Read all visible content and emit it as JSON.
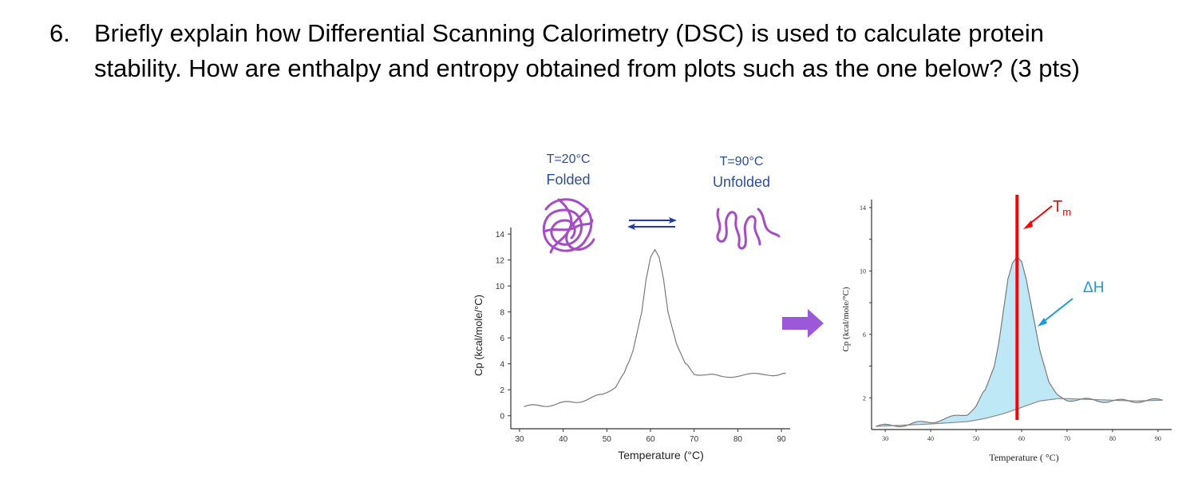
{
  "question": {
    "number": "6.",
    "text": "Briefly explain how Differential Scanning Calorimetry (DSC) is used to calculate protein stability. How are enthalpy and entropy obtained from plots such as the one below? (3 pts)"
  },
  "figure": {
    "folded_label_temp": "T=20°C",
    "folded_label_state": "Folded",
    "unfolded_label_temp": "T=90°C",
    "unfolded_label_state": "Unfolded",
    "tm_label": "T",
    "tm_label_sub": "m",
    "dh_label": "ΔH",
    "colors": {
      "protein": "#a54cc6",
      "equilibrium_arrows": "#1f3c9e",
      "label_blue": "#2a4d9c",
      "transition_arrow": "#9b59d8",
      "tm_line": "#ff0000",
      "area_fill": "#bfe8f7",
      "dh_arrow": "#1a9be0",
      "curve": "#7a7a7a"
    }
  },
  "chart_data": [
    {
      "type": "line",
      "xlabel": "Temperature (°C)",
      "ylabel": "Cp (kcal/mole/°C)",
      "xlim": [
        28,
        92
      ],
      "ylim": [
        -1,
        14.5
      ],
      "xticks": [
        30,
        40,
        50,
        60,
        70,
        80,
        90
      ],
      "yticks": [
        0,
        2,
        4,
        6,
        8,
        10,
        12,
        14
      ],
      "x": [
        31,
        34,
        37,
        40,
        43,
        46,
        49,
        52,
        54,
        56,
        58,
        59,
        60,
        61,
        62,
        63,
        64,
        66,
        68,
        70,
        73,
        76,
        80,
        84,
        88,
        91
      ],
      "y": [
        0.7,
        0.75,
        0.85,
        0.95,
        1.1,
        1.3,
        1.6,
        2.3,
        3.2,
        5.0,
        8.0,
        10.5,
        12.2,
        12.8,
        12.2,
        10.5,
        8.0,
        5.5,
        4.0,
        3.3,
        3.1,
        3.05,
        3.1,
        3.15,
        3.2,
        3.25
      ]
    },
    {
      "type": "area",
      "xlabel": "Temperature ( °C)",
      "ylabel": "Cp (kcal/mole/°C)",
      "xlim": [
        27,
        93
      ],
      "ylim": [
        0,
        14.5
      ],
      "xticks": [
        30,
        40,
        50,
        60,
        70,
        80,
        90
      ],
      "yticks": [
        2,
        6,
        10,
        14
      ],
      "tm": 59,
      "series": [
        {
          "x": [
            28,
            32,
            36,
            40,
            44,
            48,
            50,
            52,
            54,
            55,
            56,
            57,
            58,
            59,
            60,
            61,
            62,
            63,
            64,
            66,
            68,
            70,
            75,
            80,
            85,
            91
          ],
          "y": [
            0.2,
            0.25,
            0.35,
            0.5,
            0.7,
            1.0,
            1.5,
            2.5,
            4.0,
            5.5,
            7.5,
            9.5,
            10.5,
            10.9,
            10.6,
            9.5,
            8.0,
            6.5,
            5.0,
            3.0,
            2.1,
            1.9,
            1.85,
            1.8,
            1.8,
            1.85
          ]
        },
        {
          "x": [
            28,
            40,
            48,
            52,
            56,
            60,
            64,
            68,
            70,
            75,
            80,
            85,
            91
          ],
          "y": [
            0.2,
            0.35,
            0.5,
            0.7,
            1.0,
            1.4,
            1.8,
            1.95,
            1.95,
            1.9,
            1.85,
            1.8,
            1.85
          ]
        }
      ]
    }
  ]
}
